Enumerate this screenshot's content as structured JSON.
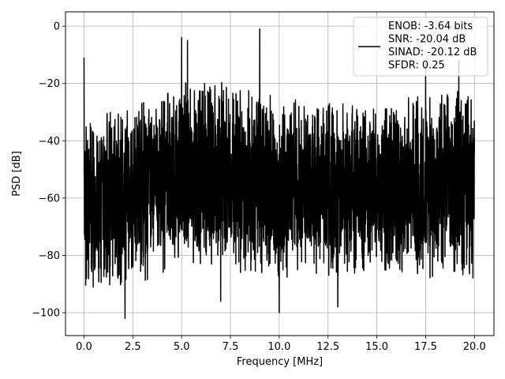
{
  "chart_data": {
    "type": "line",
    "title": "",
    "xlabel": "Frequency [MHz]",
    "ylabel": "PSD [dB]",
    "xlim": [
      -0.95,
      21.0
    ],
    "ylim": [
      -108,
      5
    ],
    "xticks": [
      0.0,
      2.5,
      5.0,
      7.5,
      10.0,
      12.5,
      15.0,
      17.5,
      20.0
    ],
    "xtick_labels": [
      "0.0",
      "2.5",
      "5.0",
      "7.5",
      "10.0",
      "12.5",
      "15.0",
      "17.5",
      "20.0"
    ],
    "yticks": [
      0,
      -20,
      -40,
      -60,
      -80,
      -100
    ],
    "ytick_labels": [
      "0",
      "−20",
      "−40",
      "−60",
      "−80",
      "−100"
    ],
    "grid": true,
    "legend": {
      "placement": "top-right",
      "entries": [
        "ENOB: -3.64 bits",
        "SNR: -20.04 dB",
        "SINAD: -20.12 dB",
        "SFDR: 0.25"
      ]
    },
    "series": [
      {
        "color": "#000000",
        "x_range": [
          0.0,
          20.0
        ],
        "noise_envelope": {
          "x": [
            0.0,
            2.5,
            5.0,
            7.5,
            10.0,
            12.5,
            15.0,
            17.5,
            20.0
          ],
          "upper": [
            -32,
            -28,
            -18,
            -20,
            -25,
            -27,
            -26,
            -24,
            -22
          ],
          "lower": [
            -92,
            -90,
            -86,
            -86,
            -88,
            -88,
            -86,
            -88,
            -88
          ]
        },
        "peaks": [
          {
            "x": 0.0,
            "y": -11
          },
          {
            "x": 2.1,
            "y": -102
          },
          {
            "x": 5.0,
            "y": -4
          },
          {
            "x": 5.3,
            "y": -5
          },
          {
            "x": 9.0,
            "y": -1
          },
          {
            "x": 10.0,
            "y": -100
          },
          {
            "x": 7.0,
            "y": -96
          },
          {
            "x": 13.0,
            "y": -98
          },
          {
            "x": 17.5,
            "y": -13
          },
          {
            "x": 19.2,
            "y": -12
          }
        ]
      }
    ]
  }
}
